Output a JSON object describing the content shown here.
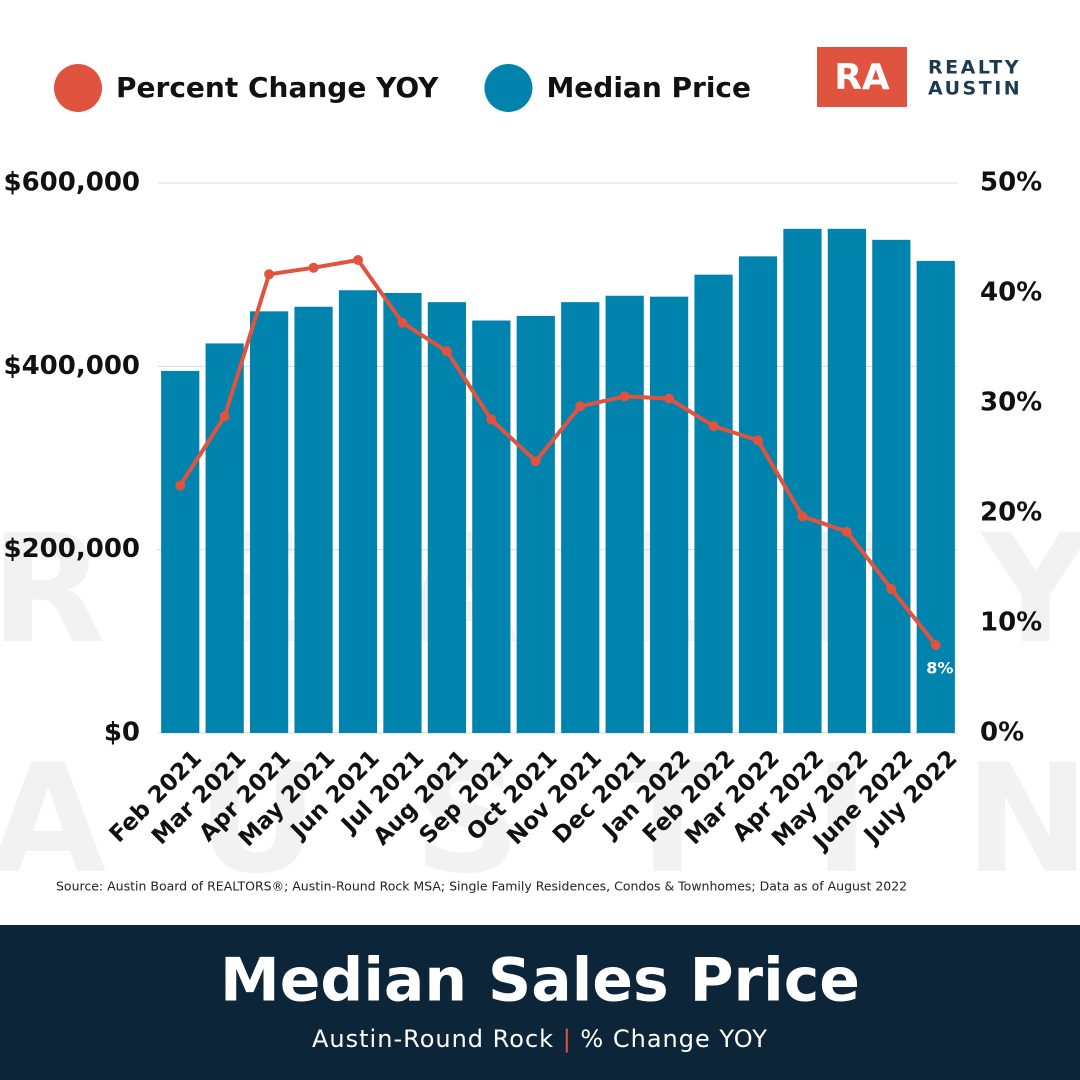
{
  "chart_data": {
    "type": "bar-line",
    "title": "Median Sales Price",
    "subtitle": [
      "Austin-Round Rock",
      "|",
      "% Change YOY"
    ],
    "source": "Source: Austin Board of REALTORS®; Austin-Round Rock MSA; Single Family Residences, Condos & Townhomes; Data as of August  2022",
    "logo": {
      "mark": "RA",
      "lines": [
        "REALTY",
        "AUSTIN"
      ]
    },
    "watermark": [
      "REALTY",
      "AUSTIN"
    ],
    "categories": [
      "Feb 2021",
      "Mar 2021",
      "Apr 2021",
      "May 2021",
      "Jun 2021",
      "Jul 2021",
      "Aug 2021",
      "Sep 2021",
      "Oct 2021",
      "Nov 2021",
      "Dec 2021",
      "Jan 2022",
      "Feb 2022",
      "Mar 2022",
      "Apr 2022",
      "May 2022",
      "June 2022",
      "July 2022"
    ],
    "series": [
      {
        "name": "Percent Change YOY",
        "type": "line",
        "axis": "y2",
        "color": "#e0533f",
        "values": [
          22.5,
          28.8,
          41.7,
          42.3,
          43.0,
          37.3,
          34.7,
          28.5,
          24.7,
          29.7,
          30.6,
          30.4,
          27.9,
          26.6,
          19.7,
          18.3,
          13.1,
          8
        ],
        "value_labels": [
          null,
          null,
          null,
          null,
          null,
          null,
          null,
          null,
          null,
          null,
          null,
          null,
          null,
          null,
          null,
          null,
          null,
          "8%"
        ]
      },
      {
        "name": "Median Price",
        "type": "bar",
        "color": "#0084ad",
        "values": [
          395000,
          425000,
          460000,
          465000,
          483000,
          480000,
          470000,
          450000,
          455000,
          470000,
          477000,
          476000,
          500000,
          520000,
          550000,
          550000,
          538000,
          515000
        ]
      }
    ],
    "ylim": [
      0,
      600000
    ],
    "yticks": [
      {
        "value": 0,
        "label": "$0"
      },
      {
        "value": 200000,
        "label": "$200,000"
      },
      {
        "value": 400000,
        "label": "$400,000"
      },
      {
        "value": 600000,
        "label": "$600,000"
      }
    ],
    "y2lim": [
      0,
      50
    ],
    "y2ticks": [
      {
        "value": 0,
        "label": "0%"
      },
      {
        "value": 10,
        "label": "10%"
      },
      {
        "value": 20,
        "label": "20%"
      },
      {
        "value": 30,
        "label": "30%"
      },
      {
        "value": 40,
        "label": "40%"
      },
      {
        "value": 50,
        "label": "50%"
      }
    ],
    "grid": true
  }
}
